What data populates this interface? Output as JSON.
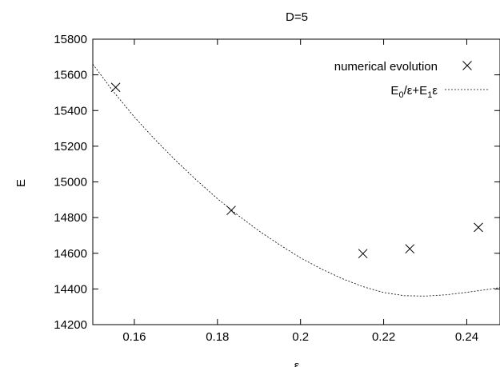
{
  "chart_data": {
    "type": "scatter",
    "title": "D=5",
    "xlabel": "ε",
    "ylabel": "E",
    "xlim": [
      0.15,
      0.248
    ],
    "ylim": [
      14200,
      15800
    ],
    "x_ticks": [
      0.16,
      0.18,
      0.2,
      0.22,
      0.24
    ],
    "x_tick_labels": [
      "0.16",
      "0.18",
      "0.2",
      "0.22",
      "0.24"
    ],
    "y_ticks": [
      14200,
      14400,
      14600,
      14800,
      15000,
      15200,
      15400,
      15600,
      15800
    ],
    "y_tick_labels": [
      "14200",
      "14400",
      "14600",
      "14800",
      "15000",
      "15200",
      "15400",
      "15600",
      "15800"
    ],
    "legend_position": "top-right",
    "series": [
      {
        "name": "numerical evolution",
        "marker": "cross",
        "x": [
          0.1555,
          0.1833,
          0.215,
          0.2263,
          0.2428
        ],
        "y": [
          15530,
          14840,
          14598,
          14625,
          14745
        ]
      },
      {
        "name": "E0/ε+E1ε",
        "style": "dashed-line",
        "x": [
          0.15,
          0.155,
          0.16,
          0.165,
          0.17,
          0.175,
          0.18,
          0.185,
          0.19,
          0.195,
          0.2,
          0.205,
          0.21,
          0.215,
          0.22,
          0.225,
          0.23,
          0.235,
          0.24,
          0.245,
          0.248
        ],
        "y": [
          15660,
          15505,
          15364,
          15237,
          15119,
          15009,
          14906,
          14812,
          14725,
          14647,
          14574,
          14512,
          14458,
          14413,
          14380,
          14362,
          14360,
          14367,
          14381,
          14397,
          14408
        ]
      }
    ],
    "legend": {
      "numerical_label": "numerical evolution",
      "fit_label_parts": [
        "E",
        "0",
        "/ε+E",
        "1",
        "ε"
      ]
    }
  }
}
